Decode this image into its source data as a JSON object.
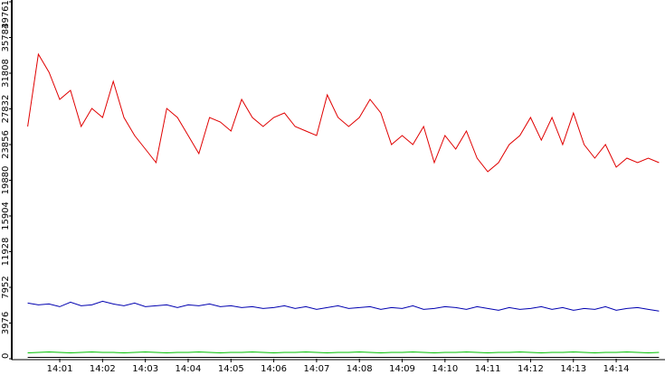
{
  "chart_data": {
    "type": "line",
    "x": [
      0.25,
      0.5,
      0.75,
      1,
      1.25,
      1.5,
      1.75,
      2,
      2.25,
      2.5,
      2.75,
      3,
      3.25,
      3.5,
      3.75,
      4,
      4.25,
      4.5,
      4.75,
      5,
      5.25,
      5.5,
      5.75,
      6,
      6.25,
      6.5,
      6.75,
      7,
      7.25,
      7.5,
      7.75,
      8,
      8.25,
      8.5,
      8.75,
      9,
      9.25,
      9.5,
      9.75,
      10,
      10.25,
      10.5,
      10.75,
      11,
      11.25,
      11.5,
      11.75,
      12,
      12.25,
      12.5,
      12.75,
      13,
      13.25,
      13.5,
      13.75,
      14,
      14.25,
      14.5,
      14.75,
      15
    ],
    "xlim": [
      -0.1,
      15.14
    ],
    "xticks": [
      {
        "value": 1,
        "label": "14:01"
      },
      {
        "value": 2,
        "label": "14:02"
      },
      {
        "value": 3,
        "label": "14:03"
      },
      {
        "value": 4,
        "label": "14:04"
      },
      {
        "value": 5,
        "label": "14:05"
      },
      {
        "value": 6,
        "label": "14:06"
      },
      {
        "value": 7,
        "label": "14:07"
      },
      {
        "value": 8,
        "label": "14:08"
      },
      {
        "value": 9,
        "label": "14:09"
      },
      {
        "value": 10,
        "label": "14:10"
      },
      {
        "value": 11,
        "label": "14:11"
      },
      {
        "value": 12,
        "label": "14:12"
      },
      {
        "value": 13,
        "label": "14:13"
      },
      {
        "value": 14,
        "label": "14:14"
      }
    ],
    "ylim": [
      0,
      39761
    ],
    "yticks": [
      0,
      3976,
      7952,
      11928,
      15904,
      19880,
      23856,
      27832,
      31808,
      35784,
      39761
    ],
    "series": [
      {
        "color": "#e00000",
        "values": [
          25870,
          33920,
          31910,
          28890,
          29900,
          25870,
          27880,
          26880,
          30900,
          26880,
          24860,
          23350,
          21840,
          27880,
          26880,
          24860,
          22850,
          26880,
          26370,
          25370,
          28890,
          26880,
          25870,
          26880,
          27380,
          25870,
          25370,
          24860,
          29390,
          26880,
          25870,
          26880,
          28890,
          27380,
          23860,
          24860,
          23860,
          25870,
          21840,
          24860,
          23350,
          25370,
          22350,
          20840,
          21840,
          23860,
          24860,
          26880,
          24350,
          26880,
          23860,
          27380,
          23860,
          22350,
          23860,
          21340,
          22350,
          21840,
          22350,
          21840
        ]
      },
      {
        "color": "#0000b0",
        "values": [
          6200,
          6000,
          6100,
          5800,
          6300,
          5900,
          6000,
          6400,
          6100,
          5900,
          6200,
          5800,
          5900,
          6000,
          5700,
          6000,
          5900,
          6100,
          5800,
          5900,
          5700,
          5800,
          5600,
          5700,
          5900,
          5600,
          5800,
          5500,
          5700,
          5900,
          5600,
          5700,
          5800,
          5500,
          5700,
          5600,
          5900,
          5500,
          5600,
          5800,
          5700,
          5500,
          5800,
          5600,
          5400,
          5700,
          5500,
          5600,
          5800,
          5500,
          5700,
          5400,
          5600,
          5500,
          5800,
          5400,
          5600,
          5700,
          5500,
          5300
        ]
      },
      {
        "color": "#00c000",
        "values": [
          650,
          700,
          750,
          700,
          650,
          700,
          750,
          700,
          700,
          650,
          700,
          750,
          700,
          650,
          700,
          700,
          750,
          700,
          650,
          700,
          700,
          750,
          700,
          650,
          700,
          700,
          750,
          700,
          650,
          700,
          700,
          750,
          700,
          650,
          700,
          700,
          750,
          700,
          650,
          700,
          700,
          750,
          700,
          650,
          700,
          700,
          750,
          700,
          650,
          700,
          700,
          750,
          700,
          650,
          700,
          700,
          750,
          700,
          650,
          700
        ]
      },
      {
        "color": "#000000",
        "values": [
          150,
          150,
          150,
          150,
          150,
          150,
          150,
          150,
          150,
          150,
          150,
          150,
          150,
          150,
          150,
          150,
          150,
          150,
          150,
          150,
          150,
          150,
          150,
          150,
          150,
          150,
          150,
          150,
          150,
          150,
          150,
          150,
          150,
          150,
          150,
          150,
          150,
          150,
          150,
          150,
          150,
          150,
          150,
          150,
          150,
          150,
          150,
          150,
          150,
          150,
          150,
          150,
          150,
          150,
          150,
          150,
          150,
          150,
          150,
          150
        ]
      }
    ]
  }
}
